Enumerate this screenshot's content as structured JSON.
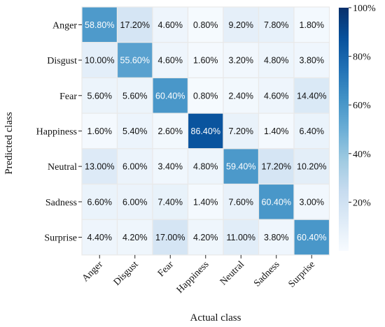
{
  "chart_data": {
    "type": "heatmap",
    "xlabel": "Actual class",
    "ylabel": "Predicted class",
    "x_categories": [
      "Anger",
      "Disgust",
      "Fear",
      "Happiness",
      "Neutral",
      "Sadness",
      "Surprise"
    ],
    "y_categories": [
      "Anger",
      "Disgust",
      "Fear",
      "Happiness",
      "Neutral",
      "Sadness",
      "Surprise"
    ],
    "values": [
      [
        58.8,
        17.2,
        4.6,
        0.8,
        9.2,
        7.8,
        1.8
      ],
      [
        10.0,
        55.6,
        4.6,
        1.6,
        3.2,
        4.8,
        3.8
      ],
      [
        5.6,
        5.6,
        60.4,
        0.8,
        2.4,
        4.6,
        14.4
      ],
      [
        1.6,
        5.4,
        2.6,
        86.4,
        7.2,
        1.4,
        6.4
      ],
      [
        13.0,
        6.0,
        3.4,
        4.8,
        59.4,
        17.2,
        10.2
      ],
      [
        6.6,
        6.0,
        7.4,
        1.4,
        7.6,
        60.4,
        3.0
      ],
      [
        4.4,
        4.2,
        17.0,
        4.2,
        11.0,
        3.8,
        60.4
      ]
    ],
    "cell_labels": [
      [
        "58.80%",
        "17.20%",
        "4.60%",
        "0.80%",
        "9.20%",
        "7.80%",
        "1.80%"
      ],
      [
        "10.00%",
        "55.60%",
        "4.60%",
        "1.60%",
        "3.20%",
        "4.80%",
        "3.80%"
      ],
      [
        "5.60%",
        "5.60%",
        "60.40%",
        "0.80%",
        "2.40%",
        "4.60%",
        "14.40%"
      ],
      [
        "1.60%",
        "5.40%",
        "2.60%",
        "86.40%",
        "7.20%",
        "1.40%",
        "6.40%"
      ],
      [
        "13.00%",
        "6.00%",
        "3.40%",
        "4.80%",
        "59.40%",
        "17.20%",
        "10.20%"
      ],
      [
        "6.60%",
        "6.00%",
        "7.40%",
        "1.40%",
        "7.60%",
        "60.40%",
        "3.00%"
      ],
      [
        "4.40%",
        "4.20%",
        "17.00%",
        "4.20%",
        "11.00%",
        "3.80%",
        "60.40%"
      ]
    ],
    "colorbar": {
      "range": [
        0,
        100
      ],
      "ticks": [
        20,
        40,
        60,
        80,
        100
      ],
      "tick_labels": [
        "20%",
        "40%",
        "60%",
        "80%",
        "100%"
      ],
      "colormap": "Blues"
    }
  }
}
